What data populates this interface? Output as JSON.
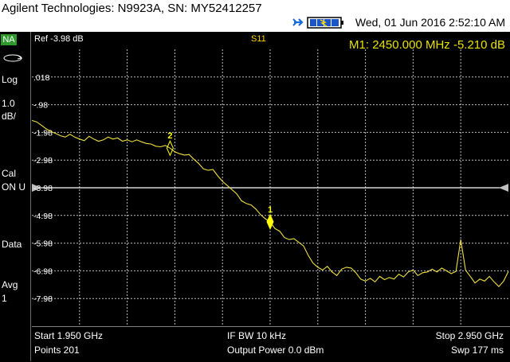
{
  "title_bar": {
    "title": "Agilent Technologies: N9923A, SN: MY52412257",
    "datetime": "Wed, 01 Jun 2016 2:52:10 AM"
  },
  "sidebar": {
    "mode": "NA",
    "scale_type": "Log",
    "scale_value": "1.0",
    "scale_unit": "dB/",
    "cal_label": "Cal",
    "cal_status": "ON U",
    "trace_display": "Data",
    "avg_label": "Avg",
    "avg_value": "1"
  },
  "header": {
    "ref": "Ref -3.98 dB",
    "trace": "S11",
    "marker_readout": "M1:  2450.000 MHz -5.210 dB"
  },
  "footer": {
    "start": "Start 1.950 GHz",
    "points": "Points 201",
    "if_bw": "IF BW 10 kHz",
    "output_power": "Output Power 0.0 dBm",
    "stop": "Stop 2.950 GHz",
    "sweep": "Swp 177 ms"
  },
  "colors": {
    "trace": "#f0e040",
    "grid": "#e0e0e0",
    "reference_line": "#ffffff",
    "mode_badge": "#2e9a2e"
  },
  "chart_data": {
    "type": "line",
    "x_unit": "MHz",
    "xlim": [
      1950,
      2950
    ],
    "ylim": [
      -8.98,
      1.02
    ],
    "ytick_labels": [
      ".018",
      "-.98",
      "-1.98",
      "-2.98",
      "-3.98",
      "-4.98",
      "-5.98",
      "-6.98",
      "-7.98"
    ],
    "ytick_values": [
      0.018,
      -0.98,
      -1.98,
      -2.98,
      -3.98,
      -4.98,
      -5.98,
      -6.98,
      -7.98
    ],
    "reference_level": -3.98,
    "series": [
      {
        "x": [
          1950,
          1960,
          1970,
          1980,
          1990,
          2000,
          2010,
          2020,
          2030,
          2040,
          2050,
          2060,
          2070,
          2080,
          2090,
          2100,
          2110,
          2120,
          2130,
          2140,
          2150,
          2160,
          2170,
          2180,
          2190,
          2200,
          2210,
          2220,
          2230,
          2240,
          2250,
          2260,
          2270,
          2280,
          2290,
          2300,
          2310,
          2320,
          2330,
          2340,
          2350,
          2360,
          2370,
          2380,
          2390,
          2400,
          2410,
          2420,
          2430,
          2440,
          2450,
          2460,
          2470,
          2480,
          2490,
          2500,
          2510,
          2520,
          2530,
          2540,
          2550,
          2560,
          2570,
          2580,
          2590,
          2600,
          2610,
          2620,
          2630,
          2640,
          2650,
          2660,
          2670,
          2680,
          2690,
          2700,
          2710,
          2720,
          2730,
          2740,
          2750,
          2760,
          2770,
          2780,
          2790,
          2800,
          2810,
          2820,
          2830,
          2840,
          2850,
          2860,
          2870,
          2880,
          2890,
          2900,
          2910,
          2920,
          2930,
          2940,
          2950
        ],
        "y": [
          -1.55,
          -1.6,
          -1.72,
          -1.85,
          -1.95,
          -2.02,
          -2.1,
          -2.15,
          -2.05,
          -2.15,
          -2.22,
          -2.28,
          -2.12,
          -2.22,
          -2.3,
          -2.25,
          -2.15,
          -2.22,
          -2.18,
          -2.3,
          -2.25,
          -2.32,
          -2.25,
          -2.32,
          -2.38,
          -2.4,
          -2.48,
          -2.5,
          -2.45,
          -2.55,
          -2.68,
          -2.75,
          -2.8,
          -2.78,
          -2.95,
          -3.1,
          -3.3,
          -3.35,
          -3.32,
          -3.55,
          -3.75,
          -3.9,
          -4.05,
          -4.2,
          -4.45,
          -4.55,
          -4.6,
          -4.75,
          -4.95,
          -5.1,
          -5.21,
          -5.45,
          -5.55,
          -5.78,
          -5.85,
          -5.82,
          -5.95,
          -6.08,
          -6.42,
          -6.7,
          -6.85,
          -6.95,
          -6.82,
          -7.02,
          -7.15,
          -6.92,
          -6.85,
          -6.88,
          -7.05,
          -7.28,
          -7.35,
          -7.25,
          -7.38,
          -7.18,
          -7.3,
          -7.22,
          -7.28,
          -7.1,
          -7.2,
          -7.02,
          -6.95,
          -7.15,
          -7.05,
          -7.02,
          -6.92,
          -7.02,
          -6.88,
          -6.98,
          -7.08,
          -7.0,
          -5.85,
          -6.95,
          -7.18,
          -7.42,
          -7.28,
          -7.35,
          -7.18,
          -7.38,
          -7.55,
          -7.35,
          -7.0
        ]
      }
    ],
    "markers": [
      {
        "label": "1",
        "x": 2450,
        "y": -5.21,
        "active": true
      },
      {
        "label": "2",
        "x": 2240,
        "y": -2.55,
        "active": false
      }
    ],
    "grid": true
  }
}
